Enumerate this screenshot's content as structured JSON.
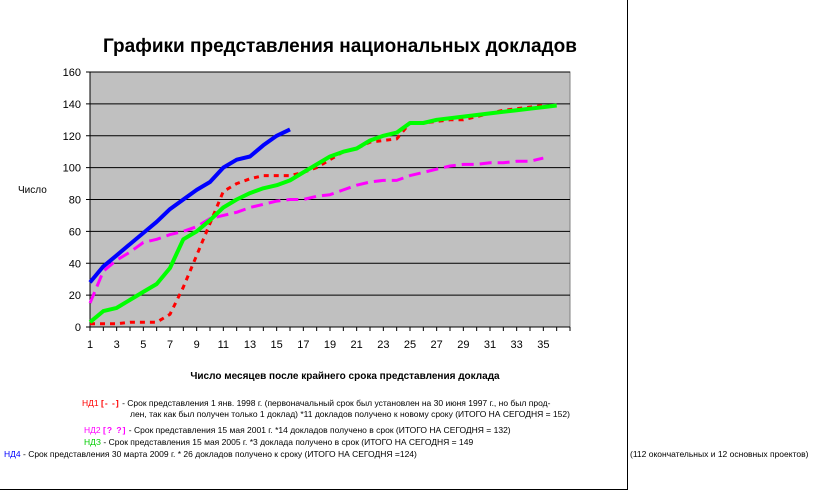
{
  "chart_data": {
    "type": "line",
    "title": "Графики представления национальных докладов",
    "xlabel": "Число месяцев после крайнего срока представления доклада",
    "ylabel": "Число",
    "xlim": [
      1,
      37
    ],
    "ylim": [
      0,
      160
    ],
    "x_ticks": [
      1,
      3,
      5,
      7,
      9,
      11,
      13,
      15,
      17,
      19,
      21,
      23,
      25,
      27,
      29,
      31,
      33,
      35
    ],
    "y_ticks": [
      0,
      20,
      40,
      60,
      80,
      100,
      120,
      140,
      160
    ],
    "grid": "horizontal",
    "background": "#c0c0c0",
    "series": [
      {
        "name": "НД1",
        "color": "#ff0000",
        "style": "dashed",
        "points": [
          [
            1,
            2
          ],
          [
            2,
            2
          ],
          [
            3,
            2
          ],
          [
            4,
            3
          ],
          [
            5,
            3
          ],
          [
            6,
            3
          ],
          [
            7,
            8
          ],
          [
            8,
            25
          ],
          [
            9,
            45
          ],
          [
            10,
            65
          ],
          [
            11,
            85
          ],
          [
            12,
            90
          ],
          [
            13,
            93
          ],
          [
            14,
            95
          ],
          [
            15,
            95
          ],
          [
            16,
            95
          ],
          [
            17,
            97
          ],
          [
            18,
            100
          ],
          [
            19,
            105
          ],
          [
            20,
            110
          ],
          [
            21,
            112
          ],
          [
            22,
            116
          ],
          [
            23,
            117
          ],
          [
            24,
            118
          ],
          [
            25,
            128
          ],
          [
            26,
            128
          ],
          [
            27,
            129
          ],
          [
            28,
            130
          ],
          [
            29,
            130
          ],
          [
            30,
            132
          ],
          [
            31,
            134
          ],
          [
            32,
            136
          ],
          [
            33,
            137
          ],
          [
            34,
            138
          ],
          [
            35,
            139
          ]
        ]
      },
      {
        "name": "НД2",
        "color": "#ff00ff",
        "style": "dashed",
        "points": [
          [
            1,
            15
          ],
          [
            2,
            35
          ],
          [
            3,
            42
          ],
          [
            4,
            47
          ],
          [
            5,
            53
          ],
          [
            6,
            55
          ],
          [
            7,
            58
          ],
          [
            8,
            60
          ],
          [
            9,
            63
          ],
          [
            10,
            68
          ],
          [
            11,
            70
          ],
          [
            12,
            72
          ],
          [
            13,
            75
          ],
          [
            14,
            77
          ],
          [
            15,
            79
          ],
          [
            16,
            80
          ],
          [
            17,
            80
          ],
          [
            18,
            82
          ],
          [
            19,
            83
          ],
          [
            20,
            86
          ],
          [
            21,
            89
          ],
          [
            22,
            91
          ],
          [
            23,
            92
          ],
          [
            24,
            92
          ],
          [
            25,
            95
          ],
          [
            26,
            97
          ],
          [
            27,
            99
          ],
          [
            28,
            101
          ],
          [
            29,
            102
          ],
          [
            30,
            102
          ],
          [
            31,
            103
          ],
          [
            32,
            103
          ],
          [
            33,
            104
          ],
          [
            34,
            104
          ],
          [
            35,
            106
          ]
        ]
      },
      {
        "name": "НД3",
        "color": "#00ff00",
        "style": "solid",
        "points": [
          [
            1,
            3
          ],
          [
            2,
            10
          ],
          [
            3,
            12
          ],
          [
            4,
            17
          ],
          [
            5,
            22
          ],
          [
            6,
            27
          ],
          [
            7,
            37
          ],
          [
            8,
            55
          ],
          [
            9,
            60
          ],
          [
            10,
            67
          ],
          [
            11,
            75
          ],
          [
            12,
            80
          ],
          [
            13,
            84
          ],
          [
            14,
            87
          ],
          [
            15,
            89
          ],
          [
            16,
            92
          ],
          [
            17,
            97
          ],
          [
            18,
            102
          ],
          [
            19,
            107
          ],
          [
            20,
            110
          ],
          [
            21,
            112
          ],
          [
            22,
            117
          ],
          [
            23,
            120
          ],
          [
            24,
            122
          ],
          [
            25,
            128
          ],
          [
            26,
            128
          ],
          [
            27,
            130
          ],
          [
            28,
            131
          ],
          [
            29,
            132
          ],
          [
            30,
            133
          ],
          [
            31,
            134
          ],
          [
            32,
            135
          ],
          [
            33,
            136
          ],
          [
            34,
            137
          ],
          [
            35,
            138
          ],
          [
            36,
            139
          ]
        ]
      },
      {
        "name": "НД4",
        "color": "#0000ff",
        "style": "solid",
        "points": [
          [
            1,
            28
          ],
          [
            2,
            38
          ],
          [
            3,
            45
          ],
          [
            4,
            52
          ],
          [
            5,
            59
          ],
          [
            6,
            66
          ],
          [
            7,
            74
          ],
          [
            8,
            80
          ],
          [
            9,
            86
          ],
          [
            10,
            91
          ],
          [
            11,
            100
          ],
          [
            12,
            105
          ],
          [
            13,
            107
          ],
          [
            14,
            114
          ],
          [
            15,
            120
          ],
          [
            16,
            124
          ]
        ]
      }
    ]
  },
  "legend": {
    "nd1": {
      "name": "НД1",
      "symbol": "[- -]",
      "text1": "- Срок представления 1 янв. 1998 г. (первоначальный срок был установлен на 30 июня 1997 г., но был прод-",
      "text2": "лен, так как был получен только 1 доклад) *11 докладов получено к новому сроку (ИТОГО НА СЕГОДНЯ = 152)"
    },
    "nd2": {
      "name": "НД2",
      "symbol": "[? ?]",
      "text": "-  Срок представления 15 мая 2001 г. *14 докладов получено в срок (ИТОГО НА СЕГОДНЯ = 132)"
    },
    "nd3": {
      "name": "НДЗ",
      "text": "- Срок представления 15 мая 2005 г. *3 доклада получено в срок (ИТОГО НА СЕГОДНЯ = 149"
    },
    "nd4": {
      "name": "НД4",
      "text": "- Срок представления 30 марта 2009 г. * 26 докладов получено к сроку (ИТОГО НА СЕГОДНЯ =124)",
      "note": "(112 окончательных и 12 основных проектов)"
    }
  }
}
